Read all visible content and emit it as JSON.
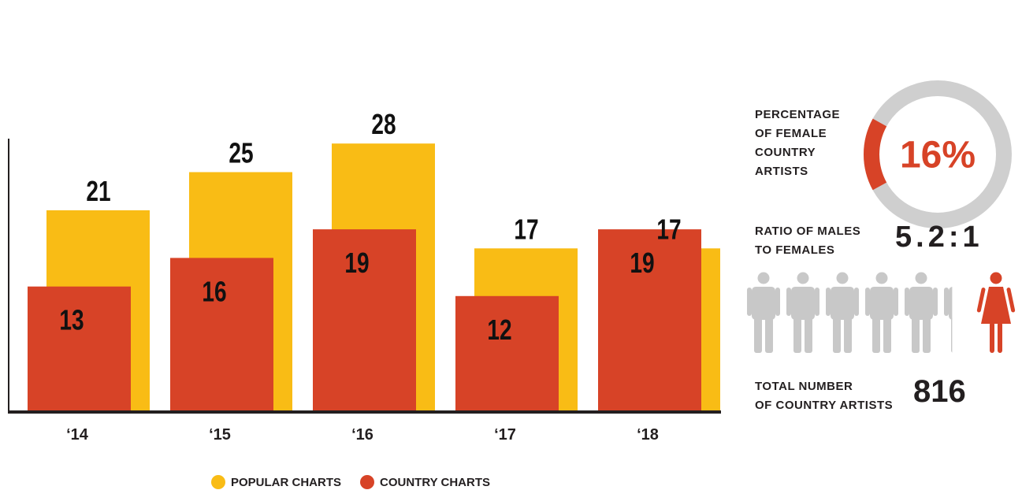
{
  "colors": {
    "popular": "#f9bc15",
    "country": "#d74327",
    "donut_track": "#cfcfcf",
    "figure_male": "#c8c8c8",
    "axis": "#231f20"
  },
  "chart_data": {
    "type": "bar",
    "categories": [
      "‘14",
      "‘15",
      "‘16",
      "‘17",
      "‘18"
    ],
    "series": [
      {
        "name": "POPULAR CHARTS",
        "values": [
          21,
          25,
          28,
          17,
          17
        ]
      },
      {
        "name": "COUNTRY CHARTS",
        "values": [
          13,
          16,
          19,
          12,
          19
        ]
      }
    ],
    "ylim": [
      0,
      30
    ],
    "legend_position": "bottom",
    "grid": false
  },
  "stats": {
    "percentage": {
      "label": "PERCENTAGE\nOF FEMALE\nCOUNTRY\nARTISTS",
      "value_text": "16%",
      "fraction": 0.16
    },
    "ratio": {
      "label": "RATIO OF MALES\nTO FEMALES",
      "value_text": "5.2:1",
      "males": 5.2,
      "females": 1
    },
    "total": {
      "label": "TOTAL NUMBER\nOF COUNTRY ARTISTS",
      "value_text": "816"
    },
    "icons": {
      "male": "male-figure-icon",
      "female": "female-figure-icon"
    }
  }
}
